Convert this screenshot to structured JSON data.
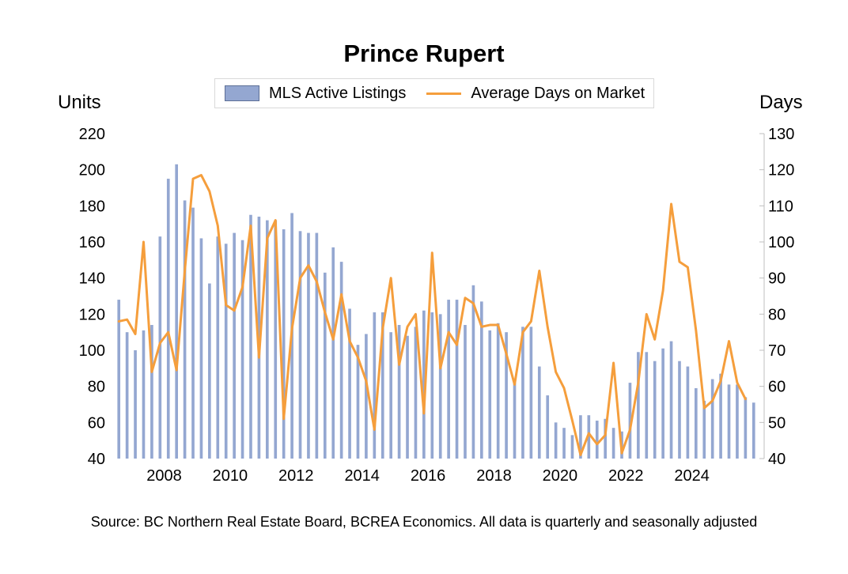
{
  "chart_data": {
    "type": "bar+line",
    "title": "Prince Rupert",
    "source": "Source: BC Northern Real Estate Board, BCREA Economics. All data is quarterly and seasonally adjusted",
    "left_axis": {
      "unit_label": "Units",
      "range": [
        40,
        220
      ],
      "ticks": [
        "220",
        "200",
        "180",
        "160",
        "140",
        "120",
        "100",
        "80",
        "60",
        "40"
      ]
    },
    "right_axis": {
      "unit_label": "Days",
      "range": [
        40,
        130
      ],
      "ticks": [
        "130",
        "120",
        "110",
        "100",
        "90",
        "80",
        "70",
        "60",
        "50",
        "40"
      ]
    },
    "x_axis": {
      "ticks": [
        "2008",
        "2010",
        "2012",
        "2014",
        "2016",
        "2018",
        "2020",
        "2022",
        "2024"
      ],
      "start": "2006Q3",
      "frequency": "quarterly"
    },
    "legend": {
      "placement": "top-center"
    },
    "series": [
      {
        "name": "MLS Active Listings",
        "kind": "bar",
        "axis": "left",
        "color": "#94a7d1",
        "values": [
          128,
          110,
          100,
          111,
          114,
          163,
          195,
          203,
          183,
          179,
          162,
          137,
          163,
          159,
          165,
          161,
          175,
          174,
          172,
          172,
          167,
          176,
          166,
          165,
          165,
          143,
          157,
          149,
          123,
          103,
          109,
          121,
          121,
          110,
          114,
          108,
          113,
          122,
          121,
          120,
          128,
          128,
          114,
          136,
          127,
          111,
          115,
          110,
          82,
          113,
          113,
          91,
          75,
          60,
          57,
          53,
          64,
          64,
          61,
          62,
          57,
          55,
          82,
          99,
          99,
          94,
          101,
          105,
          94,
          91,
          79,
          72,
          84,
          87,
          81,
          81,
          74,
          71
        ]
      },
      {
        "name": "Average Days on Market",
        "kind": "line",
        "axis": "right",
        "color": "#f59e3c",
        "values": [
          78,
          78.5,
          74.5,
          100,
          64,
          72,
          75,
          64.5,
          92,
          117.5,
          118.5,
          114,
          104.5,
          82.5,
          81,
          87.5,
          104.5,
          68,
          101,
          106,
          51,
          76,
          90,
          93.5,
          89,
          80.5,
          73,
          85.5,
          72.5,
          68,
          61.5,
          48,
          76,
          90,
          66,
          76.5,
          80,
          52.5,
          97,
          65,
          75,
          71.5,
          84.5,
          83,
          76.5,
          77,
          77,
          69,
          60.5,
          75,
          78,
          92,
          76.5,
          64,
          59.5,
          50.5,
          41,
          47,
          44,
          46.5,
          66.5,
          41.5,
          48,
          61,
          80,
          73,
          86.5,
          110.5,
          94.5,
          93,
          75.5,
          54,
          56,
          61.5,
          72.5,
          61,
          56.5
        ]
      }
    ]
  }
}
